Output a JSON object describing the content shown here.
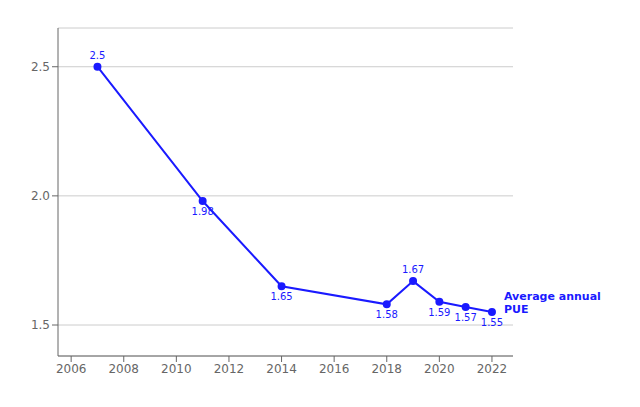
{
  "chart_data": {
    "type": "line",
    "x": [
      2007,
      2011,
      2014,
      2018,
      2019,
      2020,
      2021,
      2022
    ],
    "values": [
      2.5,
      1.98,
      1.65,
      1.58,
      1.67,
      1.59,
      1.57,
      1.55
    ],
    "color": "#1a1aff",
    "xlim": [
      2005.5,
      2022.8
    ],
    "xticks": [
      2006,
      2008,
      2010,
      2012,
      2014,
      2016,
      2018,
      2020,
      2022
    ],
    "ylim": [
      1.38,
      2.65
    ],
    "yticks": [
      1.5,
      {
        "value": 2,
        "label": "2.0"
      },
      2.5
    ],
    "grid": true,
    "data_labels": true,
    "annotations": [
      {
        "text": "Average annual\nPUE"
      }
    ]
  }
}
